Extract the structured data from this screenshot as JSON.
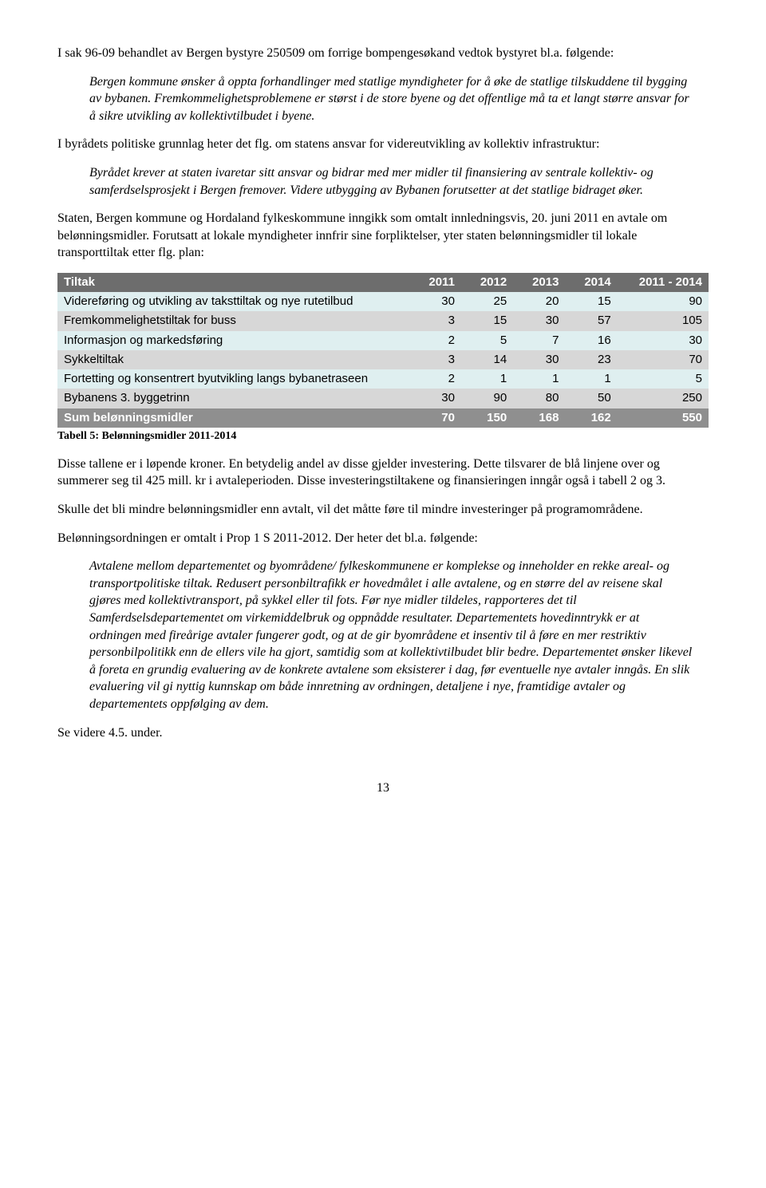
{
  "p1": "I sak 96-09 behandlet av Bergen bystyre 250509 om forrige bompengesøkand vedtok bystyret bl.a. følgende:",
  "q1": "Bergen kommune ønsker å oppta forhandlinger med statlige myndigheter for å øke de statlige tilskuddene til bygging av bybanen. Fremkommelighetsproblemene er størst i de store byene og det offentlige må ta et langt større ansvar for å sikre utvikling av kollektivtilbudet i byene.",
  "p2": "I byrådets politiske grunnlag heter det flg. om statens ansvar for videreutvikling av kollektiv infrastruktur:",
  "q2": "Byrådet krever at staten ivaretar sitt ansvar og bidrar med mer midler til finansiering av sentrale kollektiv- og samferdselsprosjekt i Bergen fremover. Videre utbygging av Bybanen forutsetter at det statlige bidraget øker.",
  "p3": "Staten, Bergen kommune og Hordaland fylkeskommune inngikk som omtalt innledningsvis, 20. juni 2011 en avtale om belønningsmidler.  Forutsatt at lokale myndigheter innfrir sine forpliktelser, yter staten belønningsmidler til lokale transporttiltak etter flg. plan:",
  "table": {
    "columns": [
      "Tiltak",
      "2011",
      "2012",
      "2013",
      "2014",
      "2011 - 2014"
    ],
    "rows": [
      {
        "style": "row-light",
        "cells": [
          "Videreføring og utvikling av taksttiltak og nye rutetilbud",
          "30",
          "25",
          "20",
          "15",
          "90"
        ]
      },
      {
        "style": "row-gray",
        "cells": [
          "Fremkommelighetstiltak for buss",
          "3",
          "15",
          "30",
          "57",
          "105"
        ]
      },
      {
        "style": "row-light",
        "cells": [
          "Informasjon og markedsføring",
          "2",
          "5",
          "7",
          "16",
          "30"
        ]
      },
      {
        "style": "row-gray",
        "cells": [
          "Sykkeltiltak",
          "3",
          "14",
          "30",
          "23",
          "70"
        ]
      },
      {
        "style": "row-light",
        "cells": [
          "Fortetting og konsentrert byutvikling langs bybanetraseen",
          "2",
          "1",
          "1",
          "1",
          "5"
        ]
      },
      {
        "style": "row-gray",
        "cells": [
          "Bybanens 3. byggetrinn",
          "30",
          "90",
          "80",
          "50",
          "250"
        ]
      },
      {
        "style": "row-sum",
        "cells": [
          "Sum belønningsmidler",
          "70",
          "150",
          "168",
          "162",
          "550"
        ]
      }
    ],
    "col_widths": [
      "54%",
      "8%",
      "8%",
      "8%",
      "8%",
      "14%"
    ],
    "header_bg": "#6d6d6d",
    "header_fg": "#ffffff",
    "light_bg": "#dfeff0",
    "gray_bg": "#d7d7d7",
    "sum_bg": "#8f8f8f"
  },
  "caption": "Tabell 5: Belønningsmidler 2011-2014",
  "p4": "Disse tallene er i løpende kroner.  En betydelig andel av disse gjelder investering.  Dette tilsvarer de blå linjene over og summerer seg til 425 mill. kr i avtaleperioden.  Disse investeringstiltakene og finansieringen inngår også i tabell 2 og 3.",
  "p5": "Skulle det bli mindre belønningsmidler enn avtalt, vil det måtte føre til mindre investeringer på programområdene.",
  "p6": "Belønningsordningen er omtalt i Prop 1 S 2011-2012.  Der heter det bl.a. følgende:",
  "q3": "Avtalene mellom departementet og byområdene/ fylkeskommunene er komplekse og inneholder en rekke areal- og transportpolitiske tiltak. Redusert personbiltrafikk er hovedmålet i alle avtalene, og en større del av reisene skal gjøres med kollektivtransport, på sykkel eller til fots.  Før nye midler tildeles, rapporteres det til Samferdselsdepartementet om virkemiddelbruk og oppnådde resultater. Departementets hovedinntrykk er at ordningen med fireårige avtaler fungerer godt, og at de gir byområdene et insentiv til å føre en mer restriktiv personbilpolitikk enn de ellers vile ha gjort, samtidig som at kollektivtilbudet blir bedre.  Departementet ønsker likevel å foreta en grundig evaluering av de konkrete avtalene som eksisterer i dag, før eventuelle nye avtaler inngås. En slik evaluering vil gi nyttig kunnskap om både innretning av ordningen, detaljene i nye, framtidige avtaler og departementets oppfølging av dem.",
  "p7": "Se videre 4.5. under.",
  "pagenum": "13"
}
